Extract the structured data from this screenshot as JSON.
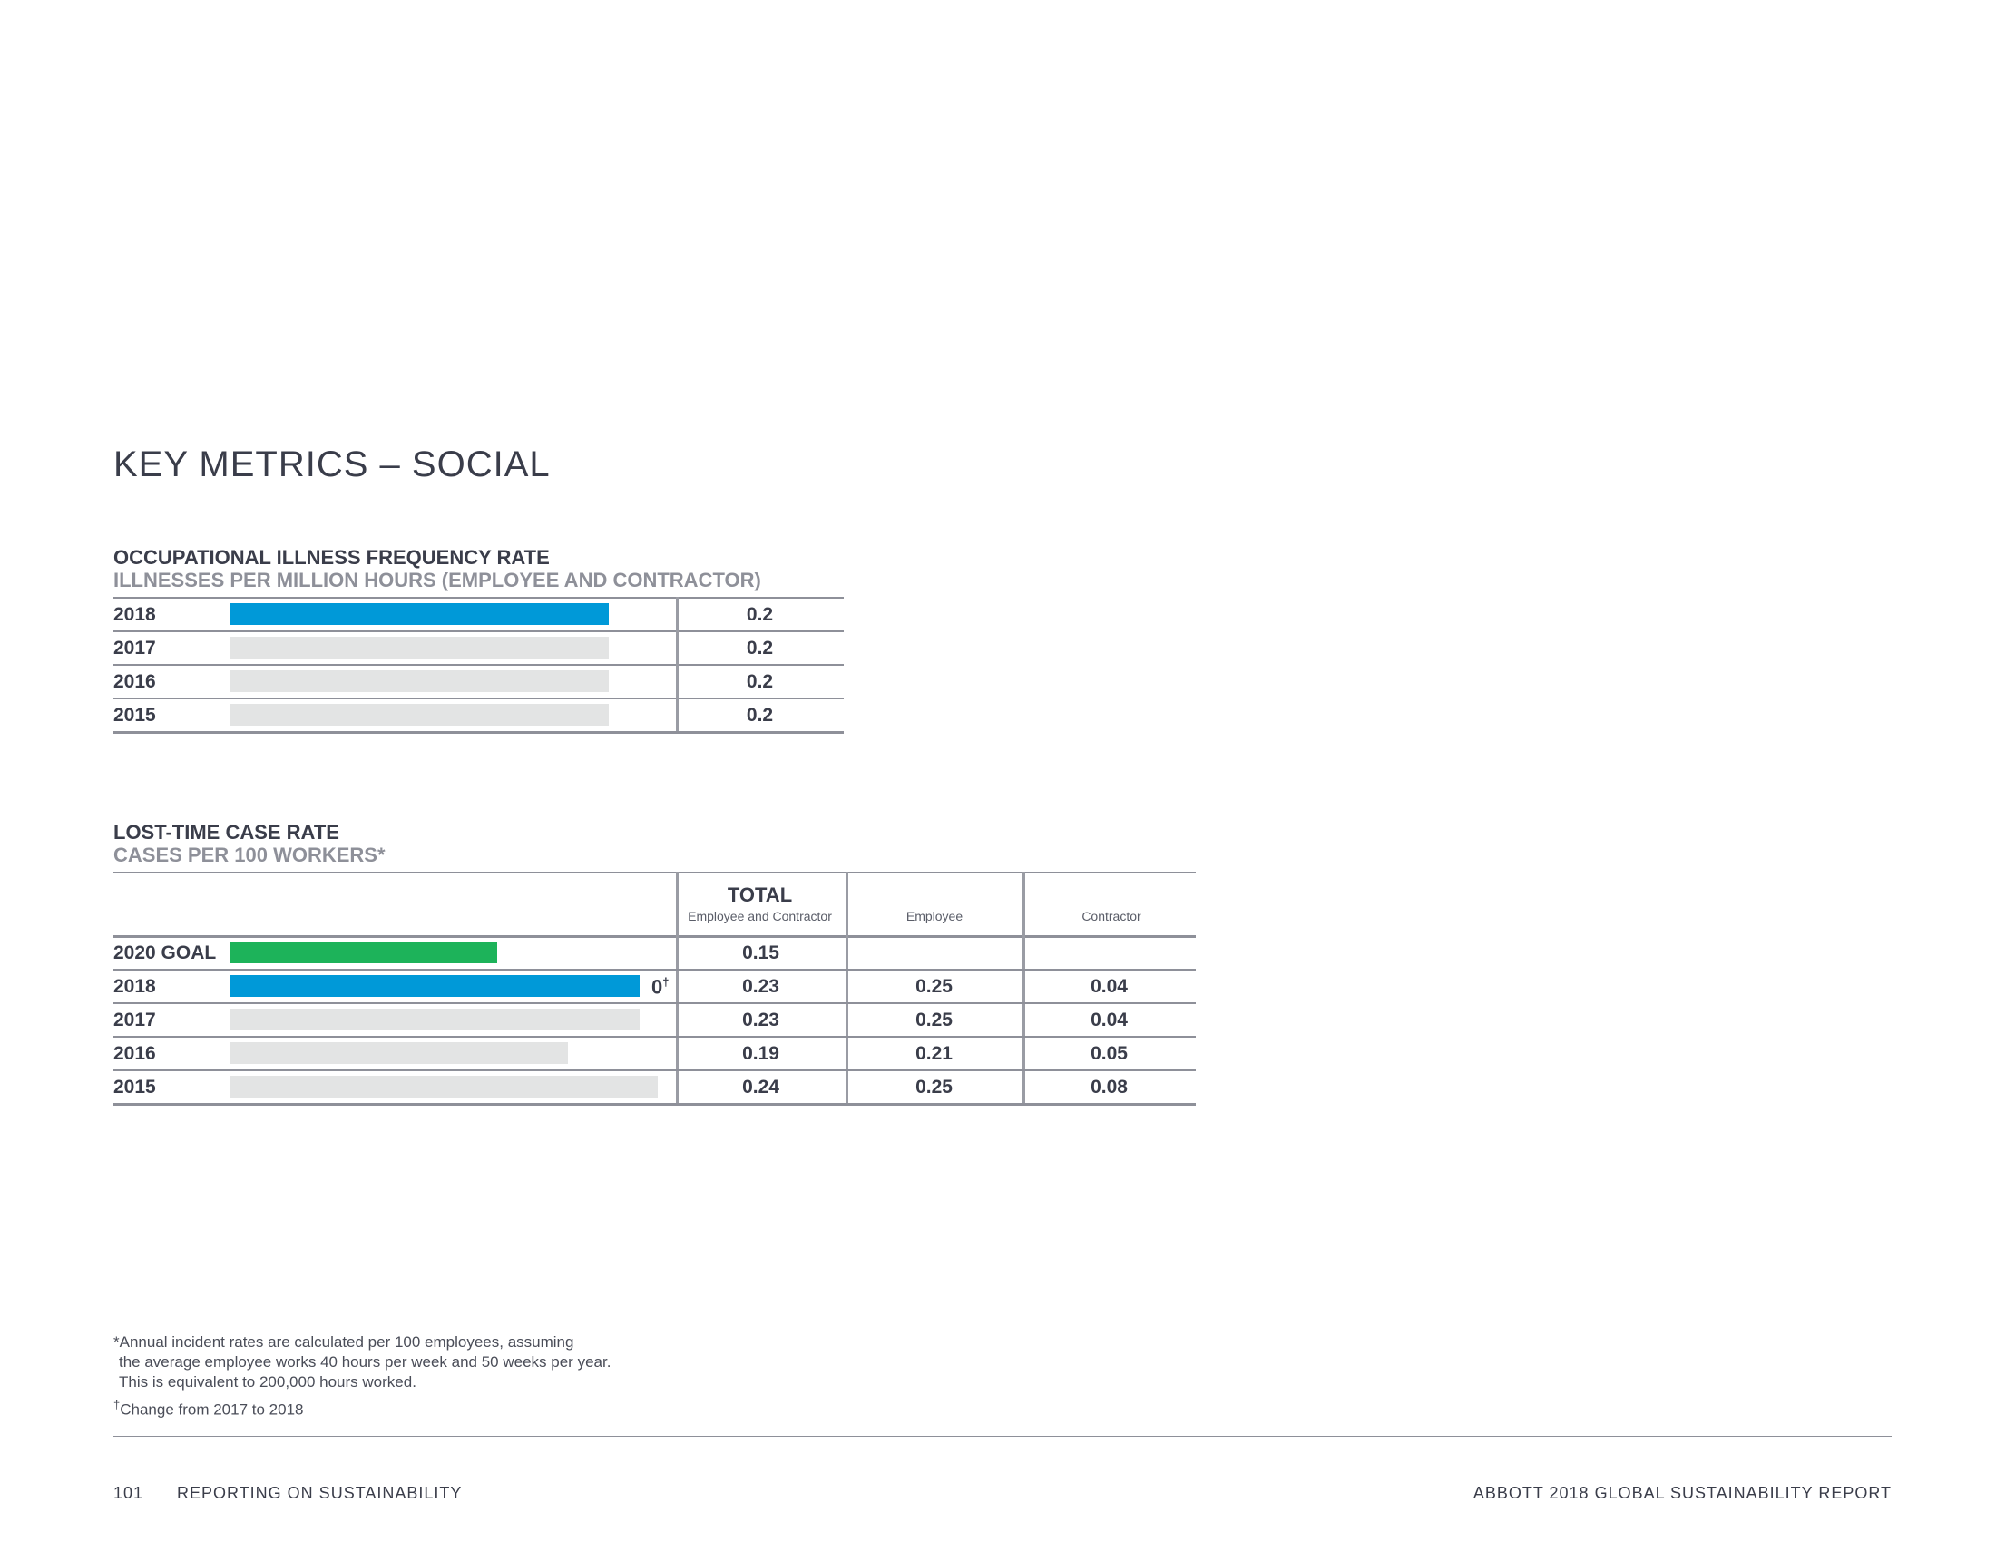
{
  "page": {
    "title": "KEY METRICS – SOCIAL"
  },
  "chart_data": [
    {
      "type": "bar",
      "title": "OCCUPATIONAL ILLNESS FREQUENCY RATE",
      "subtitle": "ILLNESSES PER MILLION HOURS (EMPLOYEE AND CONTRACTOR)",
      "categories": [
        "2018",
        "2017",
        "2016",
        "2015"
      ],
      "values": [
        0.2,
        0.2,
        0.2,
        0.2
      ],
      "value_labels": [
        "0.2",
        "0.2",
        "0.2",
        "0.2"
      ],
      "highlight": "2018",
      "colors": {
        "highlight": "#0099d8",
        "other": "#e3e4e4"
      }
    },
    {
      "type": "bar",
      "title": "LOST-TIME CASE RATE",
      "subtitle": "CASES PER 100 WORKERS*",
      "columns": {
        "total": "TOTAL",
        "total_sub": "Employee and Contractor",
        "employee": "Employee",
        "contractor": "Contractor"
      },
      "categories": [
        "2020 GOAL",
        "2018",
        "2017",
        "2016",
        "2015"
      ],
      "values": [
        0.15,
        0.23,
        0.23,
        0.19,
        0.24
      ],
      "rows": [
        {
          "label": "2020 GOAL",
          "total": "0.15",
          "employee": "",
          "contractor": ""
        },
        {
          "label": "2018",
          "total": "0.23",
          "employee": "0.25",
          "contractor": "0.04"
        },
        {
          "label": "2017",
          "total": "0.23",
          "employee": "0.25",
          "contractor": "0.04"
        },
        {
          "label": "2016",
          "total": "0.19",
          "employee": "0.21",
          "contractor": "0.05"
        },
        {
          "label": "2015",
          "total": "0.24",
          "employee": "0.25",
          "contractor": "0.08"
        }
      ],
      "annotation": {
        "row": "2018",
        "text": "0",
        "mark": "†"
      },
      "colors": {
        "goal": "#1db35a",
        "highlight": "#0099d8",
        "other": "#e3e4e4"
      }
    }
  ],
  "footnotes": {
    "line1": "*Annual incident rates are calculated per 100 employees, assuming",
    "line2": "the average employee works 40 hours per week and 50 weeks per year.",
    "line3": "This is equivalent to 200,000 hours worked.",
    "dagger_mark": "†",
    "dagger_text": "Change from 2017 to 2018"
  },
  "footer": {
    "page_number": "101",
    "section": "REPORTING ON SUSTAINABILITY",
    "report": "ABBOTT 2018 GLOBAL SUSTAINABILITY REPORT"
  }
}
